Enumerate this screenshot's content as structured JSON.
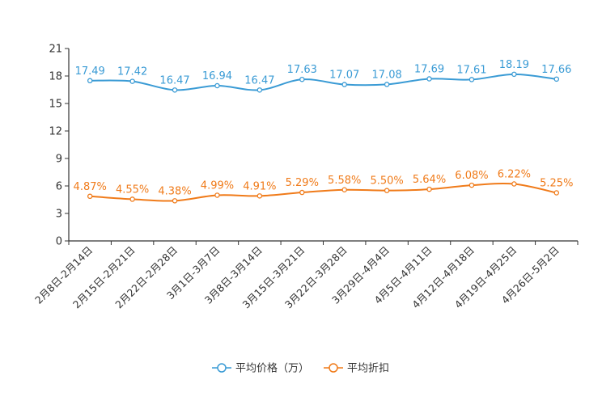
{
  "chart_data": {
    "type": "line",
    "categories": [
      "2月8日-2月14日",
      "2月15日-2月21日",
      "2月22日-2月28日",
      "3月1日-3月7日",
      "3月8日-3月14日",
      "3月15日-3月21日",
      "3月22日-3月28日",
      "3月29日-4月4日",
      "4月5日-4月11日",
      "4月12日-4月18日",
      "4月19日-4月25日",
      "4月26日-5月2日"
    ],
    "series": [
      {
        "name": "平均价格（万）",
        "color": "#3a9bd5",
        "values": [
          17.49,
          17.42,
          16.47,
          16.94,
          16.47,
          17.63,
          17.07,
          17.08,
          17.69,
          17.61,
          18.19,
          17.66
        ],
        "labels": [
          "17.49",
          "17.42",
          "16.47",
          "16.94",
          "16.47",
          "17.63",
          "17.07",
          "17.08",
          "17.69",
          "17.61",
          "18.19",
          "17.66"
        ]
      },
      {
        "name": "平均折扣",
        "color": "#f07b1a",
        "values": [
          4.87,
          4.55,
          4.38,
          4.99,
          4.91,
          5.29,
          5.58,
          5.5,
          5.64,
          6.08,
          6.22,
          5.25
        ],
        "labels": [
          "4.87%",
          "4.55%",
          "4.38%",
          "4.99%",
          "4.91%",
          "5.29%",
          "5.58%",
          "5.50%",
          "5.64%",
          "6.08%",
          "6.22%",
          "5.25%"
        ]
      }
    ],
    "ylim": [
      0,
      21
    ],
    "yticks": [
      "0",
      "3",
      "6",
      "9",
      "12",
      "15",
      "18",
      "21"
    ],
    "legend_position": "bottom-center",
    "grid": false
  }
}
